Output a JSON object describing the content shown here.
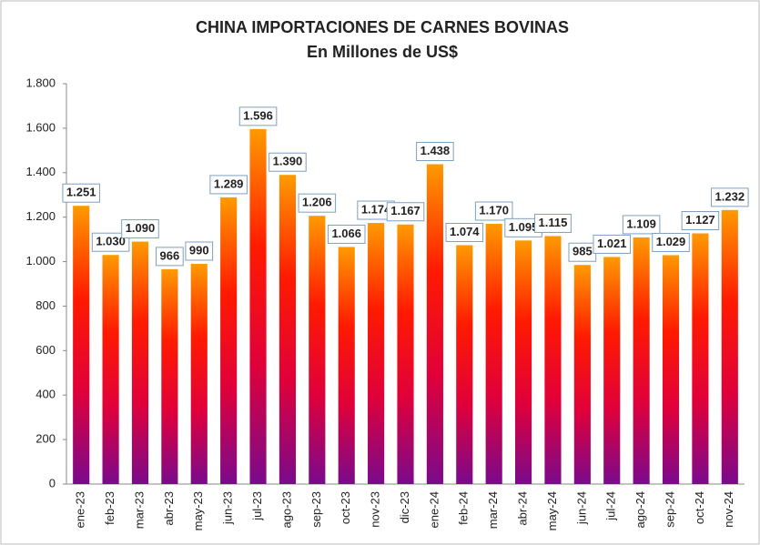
{
  "chart_data": {
    "type": "bar",
    "title": "CHINA IMPORTACIONES DE CARNES BOVINAS",
    "subtitle": "En Millones de US$",
    "categories": [
      "ene-23",
      "feb-23",
      "mar-23",
      "abr-23",
      "may-23",
      "jun-23",
      "jul-23",
      "ago-23",
      "sep-23",
      "oct-23",
      "nov-23",
      "dic-23",
      "ene-24",
      "feb-24",
      "mar-24",
      "abr-24",
      "may-24",
      "jun-24",
      "jul-24",
      "ago-24",
      "sep-24",
      "oct-24",
      "nov-24"
    ],
    "values": [
      1251,
      1030,
      1090,
      966,
      990,
      1289,
      1596,
      1390,
      1206,
      1066,
      1174,
      1167,
      1438,
      1074,
      1170,
      1095,
      1115,
      985,
      1021,
      1109,
      1029,
      1127,
      1232
    ],
    "value_labels": [
      "1.251",
      "1.030",
      "1.090",
      "966",
      "990",
      "1.289",
      "1.596",
      "1.390",
      "1.206",
      "1.066",
      "1.174",
      "1.167",
      "1.438",
      "1.074",
      "1.170",
      "1.095",
      "1.115",
      "985",
      "1.021",
      "1.109",
      "1.029",
      "1.127",
      "1.232"
    ],
    "colors": [
      "#ff9a00",
      "#ff1a00",
      "#e0003a",
      "#7a0a8c"
    ],
    "ylim": [
      0,
      1800
    ],
    "yticks": [
      0,
      200,
      400,
      600,
      800,
      {
        "value": 1000,
        "label": "1.000"
      },
      {
        "value": 1200,
        "label": "1.200"
      },
      {
        "value": 1400,
        "label": "1.400"
      },
      {
        "value": 1600,
        "label": "1.600"
      },
      {
        "value": 1800,
        "label": "1.800"
      }
    ],
    "grid": false
  }
}
